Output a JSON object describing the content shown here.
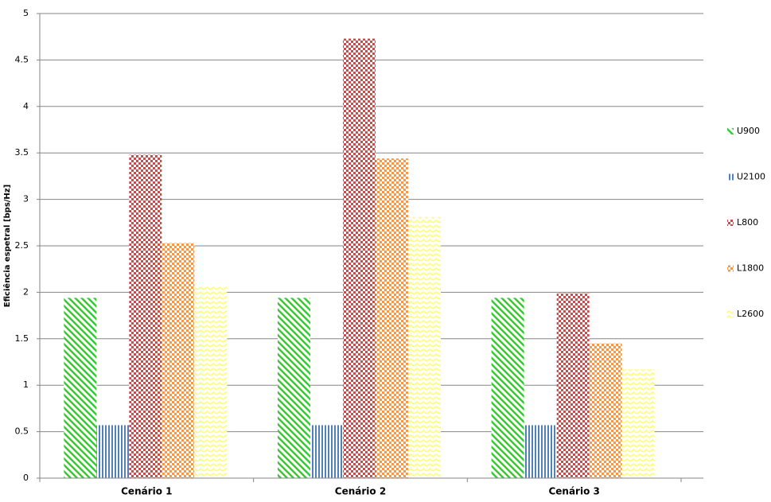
{
  "chart_data": {
    "type": "bar",
    "y_label": "Eficiência espetral [bps/Hz]",
    "categories": [
      "Cenário 1",
      "Cenário 2",
      "Cenário 3"
    ],
    "series": [
      {
        "name": "U900",
        "color": "#33cc33",
        "pattern": "diagonal",
        "values": [
          1.94,
          1.94,
          1.94
        ]
      },
      {
        "name": "U2100",
        "color": "#4f81bd",
        "pattern": "vertical",
        "values": [
          0.57,
          0.57,
          0.57
        ]
      },
      {
        "name": "L800",
        "color": "#c0504d",
        "pattern": "checker",
        "values": [
          3.48,
          4.73,
          1.99
        ]
      },
      {
        "name": "L1800",
        "color": "#f79646",
        "pattern": "checker",
        "values": [
          2.53,
          3.44,
          1.45
        ]
      },
      {
        "name": "L2600",
        "color": "#ffff66",
        "pattern": "zigzag",
        "values": [
          2.06,
          2.81,
          1.17
        ]
      }
    ],
    "ylim": [
      0,
      5
    ],
    "yticks": [
      0,
      0.5,
      1,
      1.5,
      2,
      2.5,
      3,
      3.5,
      4,
      4.5,
      5
    ],
    "grid": true,
    "legend": "right"
  }
}
